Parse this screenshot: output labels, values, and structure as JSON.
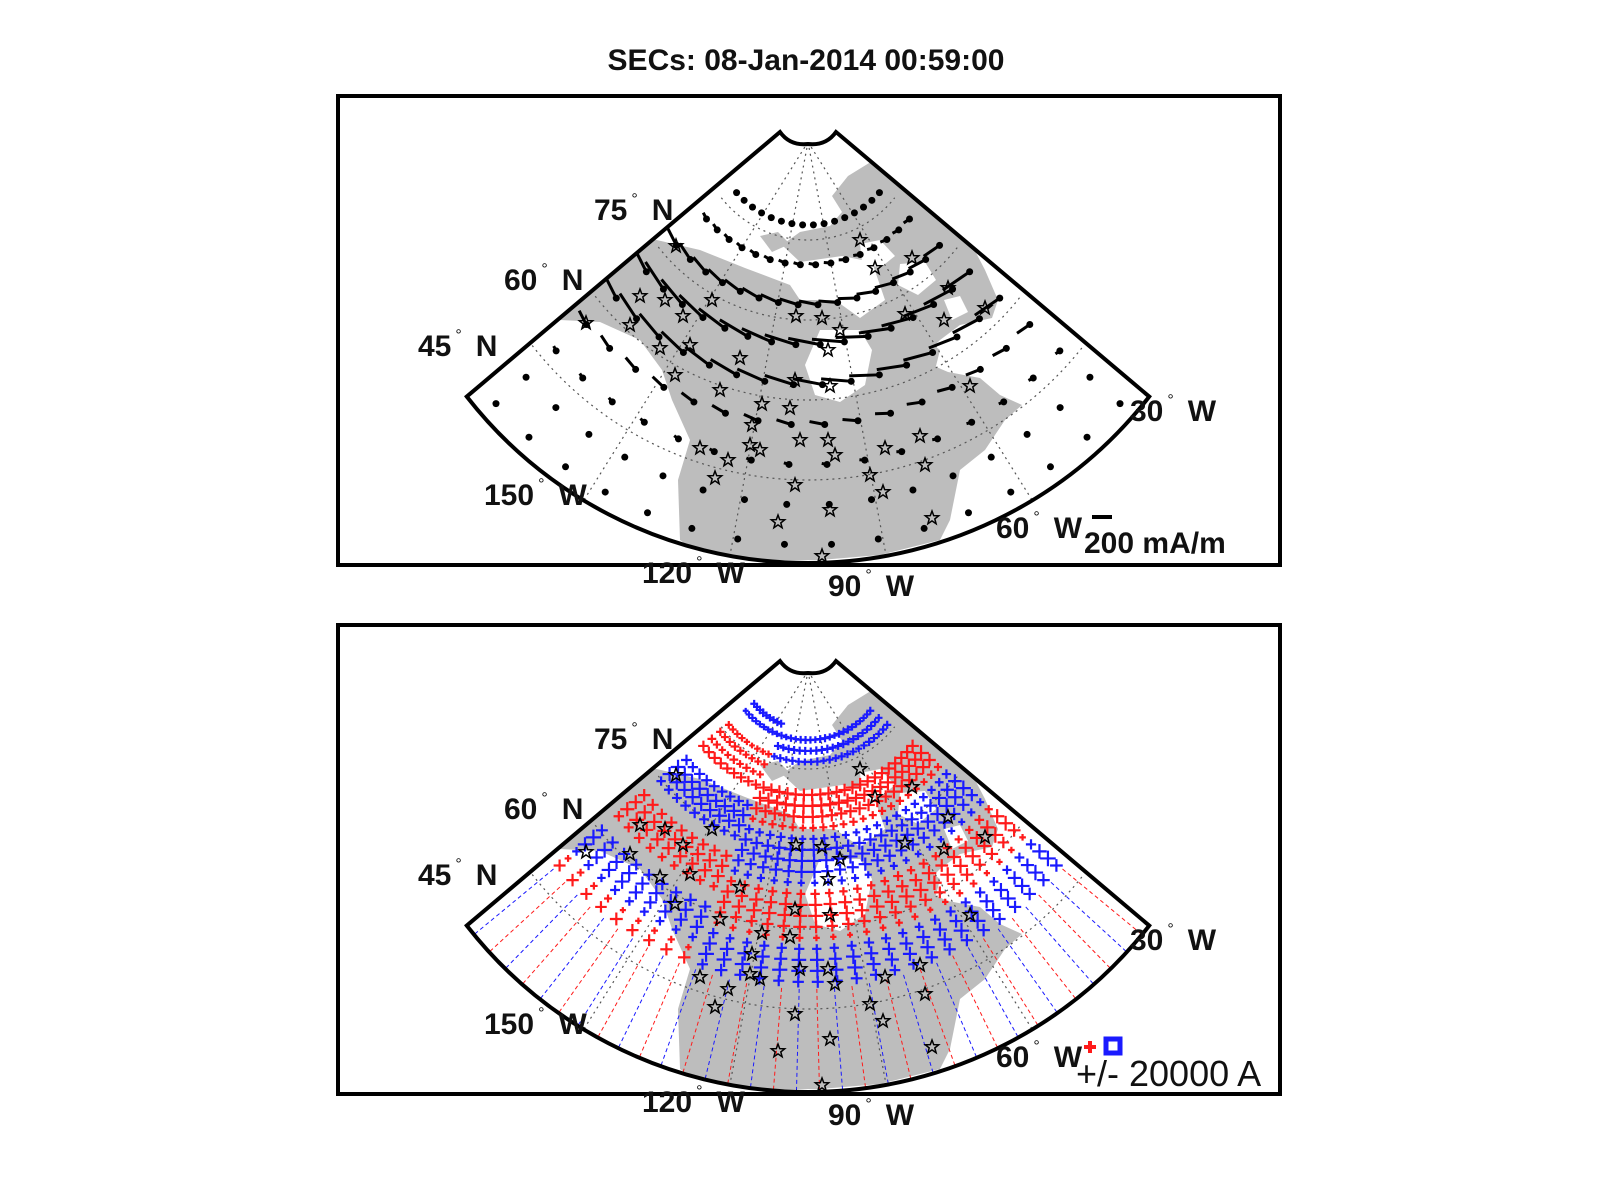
{
  "figure": {
    "title": "SECs: 08-Jan-2014 00:59:00"
  },
  "map_labels": {
    "lat": [
      {
        "value": "75",
        "hemi": "N"
      },
      {
        "value": "60",
        "hemi": "N"
      },
      {
        "value": "45",
        "hemi": "N"
      }
    ],
    "lon": [
      {
        "value": "150",
        "hemi": "W"
      },
      {
        "value": "120",
        "hemi": "W"
      },
      {
        "value": "90",
        "hemi": "W"
      },
      {
        "value": "60",
        "hemi": "W"
      },
      {
        "value": "30",
        "hemi": "W"
      }
    ],
    "degree_symbol": "°"
  },
  "panels": [
    {
      "id": "top",
      "content": "equivalent current vectors",
      "legend_text": "200 mA/m"
    },
    {
      "id": "bottom",
      "content": "SEC amplitudes",
      "legend_text": "+/- 20000 A"
    }
  ],
  "colors": {
    "land": "#bdbdbd",
    "positive": "#ff1a1a",
    "negative": "#1a1aff",
    "vector": "#000000",
    "station_star": "#000000",
    "frame": "#000000"
  },
  "legend_symbols": {
    "positive": "red plus",
    "negative": "blue square"
  }
}
